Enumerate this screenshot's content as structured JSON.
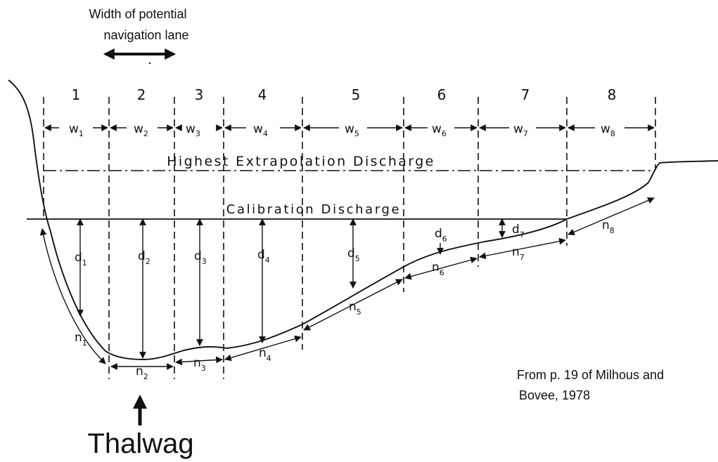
{
  "header": {
    "nav_lane_line1": "Width of potential",
    "nav_lane_line2": "navigation lane"
  },
  "discharges": {
    "highest": "Highest Extrapolation Discharge",
    "calibration": "Calibration Discharge"
  },
  "sections": {
    "numbers": [
      "1",
      "2",
      "3",
      "4",
      "5",
      "6",
      "7",
      "8"
    ],
    "widths": [
      {
        "base": "w",
        "sub": "1"
      },
      {
        "base": "w",
        "sub": "2"
      },
      {
        "base": "w",
        "sub": "3"
      },
      {
        "base": "w",
        "sub": "4"
      },
      {
        "base": "w",
        "sub": "5"
      },
      {
        "base": "w",
        "sub": "6"
      },
      {
        "base": "w",
        "sub": "7"
      },
      {
        "base": "w",
        "sub": "8"
      }
    ],
    "depths": [
      {
        "base": "d",
        "sub": "1"
      },
      {
        "base": "d",
        "sub": "2"
      },
      {
        "base": "d",
        "sub": "3"
      },
      {
        "base": "d",
        "sub": "4"
      },
      {
        "base": "d",
        "sub": "5"
      },
      {
        "base": "d",
        "sub": "6"
      },
      {
        "base": "d",
        "sub": "7"
      }
    ],
    "perimeters": [
      {
        "base": "n",
        "sub": "1"
      },
      {
        "base": "n",
        "sub": "2"
      },
      {
        "base": "n",
        "sub": "3"
      },
      {
        "base": "n",
        "sub": "4"
      },
      {
        "base": "n",
        "sub": "5"
      },
      {
        "base": "n",
        "sub": "6"
      },
      {
        "base": "n",
        "sub": "7"
      },
      {
        "base": "n",
        "sub": "8"
      }
    ]
  },
  "thalweg_label": "Thalwag",
  "citation": {
    "line1": "From p. 19 of Milhous and",
    "line2": "Bovee, 1978"
  },
  "colors": {
    "ink": "#111111",
    "background": "#ffffff"
  }
}
